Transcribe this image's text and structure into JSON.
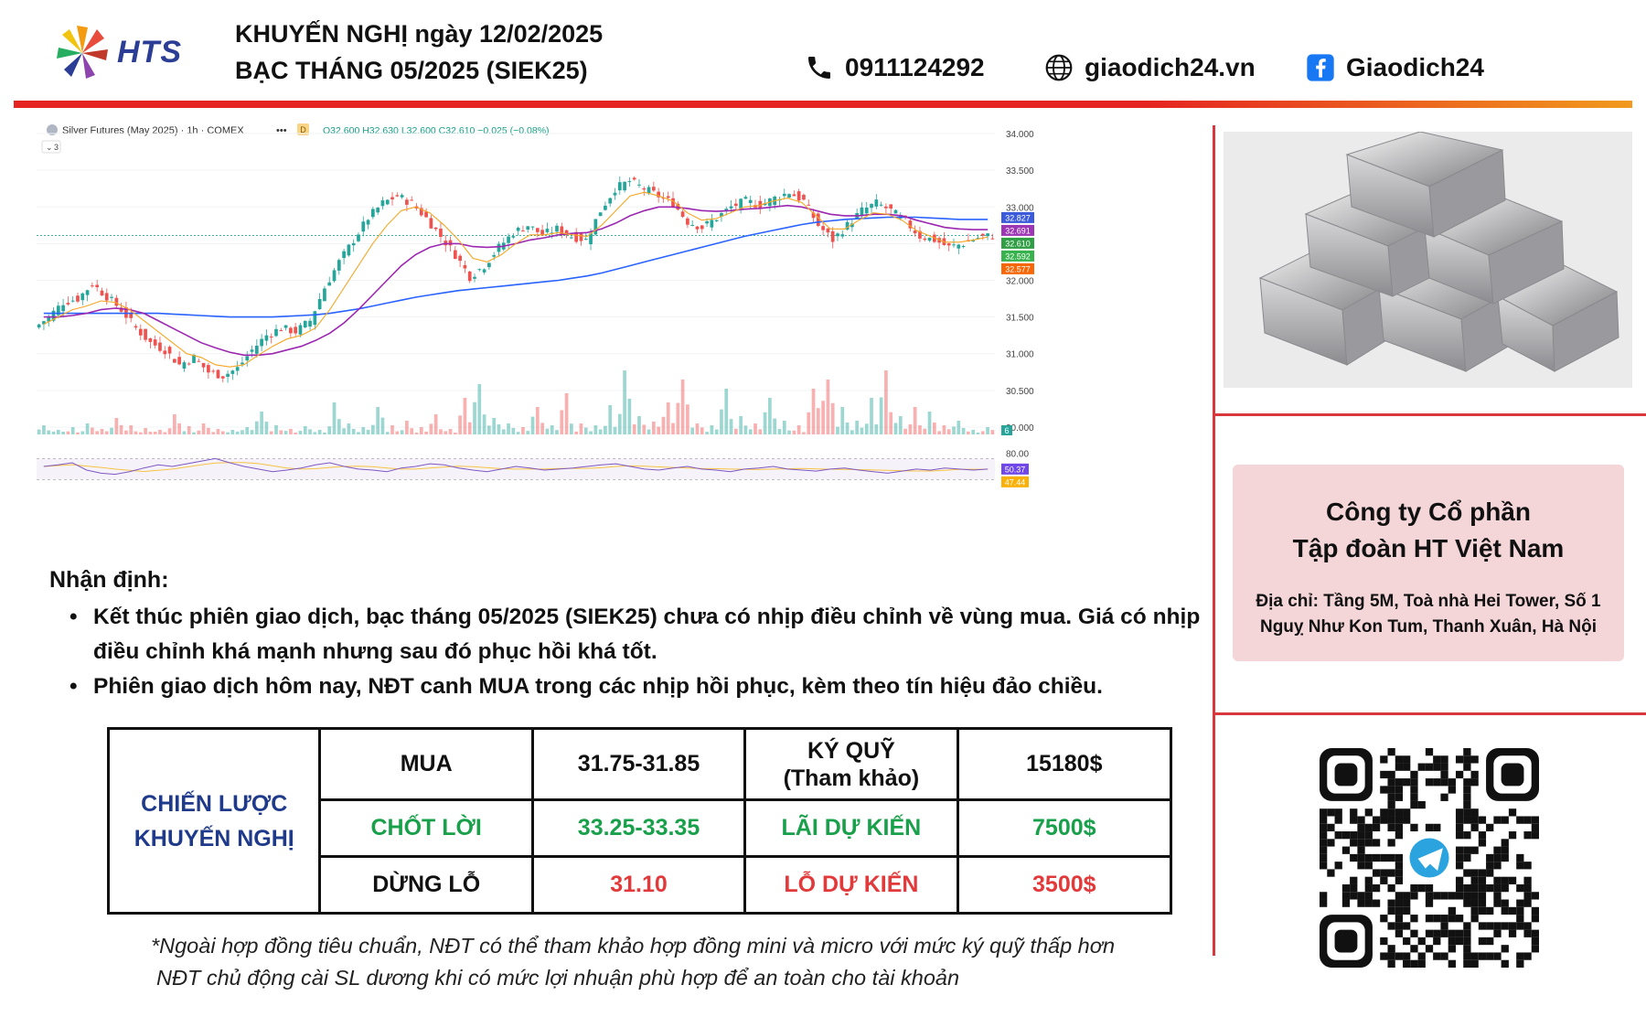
{
  "header": {
    "brand": "HTS",
    "title_line1": "KHUYẾN NGHỊ ngày 12/02/2025",
    "title_line2": "BẠC THÁNG 05/2025 (SIEK25)",
    "phone": "0911124292",
    "website": "giaodich24.vn",
    "facebook": "Giaodich24",
    "phone_icon": "phone-icon",
    "globe_icon": "globe-icon",
    "facebook_icon": "facebook-icon",
    "accent_red": "#e52421",
    "accent_orange": "#f19a1e"
  },
  "chart_data": {
    "type": "candlestick",
    "symbol_label": "Silver Futures (May 2025) · 1h · COMEX",
    "ohlc_text": "O32.600 H32.630 L32.600 C32.610 −0.025 (−0.08%)",
    "indicator_count": "3",
    "y_ticks": [
      "34.000",
      "33.500",
      "33.000",
      "32.500",
      "32.000",
      "31.500",
      "31.000",
      "30.500",
      "30.000"
    ],
    "ylim": [
      29.9,
      34.1
    ],
    "price_badges": [
      {
        "value": "32.827",
        "color": "#3b5bdb"
      },
      {
        "value": "32.691",
        "color": "#9c36b5"
      },
      {
        "value": "32.610",
        "color": "#2f9e44"
      },
      {
        "value": "32.592",
        "color": "#37b24d"
      },
      {
        "value": "32.577",
        "color": "#f76707"
      }
    ],
    "volume_badge": "6",
    "rsi_ticks": [
      "80.00"
    ],
    "rsi_badges": [
      {
        "value": "50.37",
        "color": "#7048e8"
      },
      {
        "value": "47.44",
        "color": "#fab005"
      }
    ],
    "close_path": [
      31.35,
      31.5,
      31.7,
      31.75,
      31.95,
      31.78,
      31.6,
      31.35,
      31.15,
      31.05,
      30.85,
      30.95,
      30.75,
      30.7,
      30.8,
      31.05,
      31.25,
      31.35,
      31.3,
      31.45,
      31.9,
      32.25,
      32.55,
      32.85,
      33.05,
      33.15,
      33.05,
      32.85,
      32.6,
      32.35,
      32.05,
      32.2,
      32.45,
      32.65,
      32.75,
      32.62,
      32.7,
      32.6,
      32.55,
      32.95,
      33.25,
      33.35,
      33.25,
      33.15,
      33.05,
      32.8,
      32.72,
      32.85,
      33.0,
      33.08,
      33.02,
      33.12,
      33.2,
      33.08,
      32.75,
      32.55,
      32.75,
      32.95,
      33.05,
      32.95,
      32.8,
      32.6,
      32.55,
      32.45,
      32.5,
      32.58,
      32.61
    ],
    "ma_fast": [
      31.4,
      31.5,
      31.6,
      31.65,
      31.72,
      31.7,
      31.6,
      31.45,
      31.3,
      31.15,
      31.0,
      30.95,
      30.85,
      30.82,
      30.85,
      30.98,
      31.1,
      31.2,
      31.25,
      31.35,
      31.6,
      31.9,
      32.2,
      32.5,
      32.75,
      32.95,
      33.0,
      32.92,
      32.75,
      32.55,
      32.3,
      32.25,
      32.35,
      32.5,
      32.62,
      32.62,
      32.65,
      32.62,
      32.6,
      32.75,
      32.95,
      33.15,
      33.2,
      33.15,
      33.08,
      32.92,
      32.82,
      32.84,
      32.92,
      33.0,
      33.02,
      33.08,
      33.12,
      33.06,
      32.88,
      32.7,
      32.7,
      32.82,
      32.92,
      32.9,
      32.82,
      32.68,
      32.6,
      32.52,
      32.52,
      32.55,
      32.59
    ],
    "ma_mid": [
      31.5,
      31.5,
      31.52,
      31.55,
      31.6,
      31.62,
      31.6,
      31.55,
      31.45,
      31.35,
      31.25,
      31.15,
      31.08,
      31.02,
      30.98,
      30.98,
      31.0,
      31.05,
      31.1,
      31.18,
      31.28,
      31.42,
      31.6,
      31.8,
      32.0,
      32.2,
      32.35,
      32.45,
      32.5,
      32.5,
      32.46,
      32.45,
      32.46,
      32.5,
      32.55,
      32.58,
      32.62,
      32.64,
      32.65,
      32.7,
      32.78,
      32.88,
      32.95,
      33.0,
      33.0,
      32.98,
      32.95,
      32.94,
      32.95,
      32.97,
      32.98,
      33.0,
      33.02,
      33.0,
      32.95,
      32.9,
      32.88,
      32.88,
      32.9,
      32.9,
      32.88,
      32.82,
      32.77,
      32.72,
      32.7,
      32.69,
      32.69
    ],
    "ma_slow": [
      31.55,
      31.55,
      31.55,
      31.55,
      31.55,
      31.55,
      31.55,
      31.55,
      31.55,
      31.54,
      31.53,
      31.52,
      31.51,
      31.5,
      31.5,
      31.5,
      31.5,
      31.51,
      31.52,
      31.53,
      31.55,
      31.58,
      31.61,
      31.65,
      31.69,
      31.73,
      31.77,
      31.8,
      31.83,
      31.86,
      31.88,
      31.9,
      31.92,
      31.94,
      31.96,
      31.98,
      32.0,
      32.03,
      32.06,
      32.1,
      32.15,
      32.2,
      32.25,
      32.3,
      32.35,
      32.4,
      32.45,
      32.5,
      32.55,
      32.6,
      32.64,
      32.68,
      32.72,
      32.76,
      32.79,
      32.81,
      32.83,
      32.84,
      32.85,
      32.86,
      32.86,
      32.86,
      32.85,
      32.84,
      32.83,
      32.83,
      32.83
    ],
    "volume_rel": [
      0.1,
      0.05,
      0.08,
      0.12,
      0.06,
      0.18,
      0.1,
      0.07,
      0.05,
      0.22,
      0.09,
      0.12,
      0.06,
      0.05,
      0.08,
      0.25,
      0.1,
      0.06,
      0.09,
      0.05,
      0.35,
      0.12,
      0.08,
      0.3,
      0.1,
      0.15,
      0.08,
      0.22,
      0.06,
      0.4,
      0.55,
      0.18,
      0.12,
      0.08,
      0.3,
      0.1,
      0.45,
      0.12,
      0.1,
      0.32,
      0.7,
      0.2,
      0.14,
      0.35,
      0.6,
      0.12,
      0.1,
      0.5,
      0.2,
      0.12,
      0.4,
      0.15,
      0.1,
      0.5,
      0.6,
      0.3,
      0.15,
      0.4,
      0.7,
      0.2,
      0.3,
      0.25,
      0.1,
      0.15,
      0.05,
      0.08,
      0.12
    ],
    "rsi": [
      55,
      58,
      62,
      48,
      42,
      40,
      45,
      52,
      58,
      55,
      60,
      65,
      70,
      62,
      55,
      50,
      45,
      48,
      52,
      58,
      62,
      55,
      50,
      48,
      45,
      52,
      55,
      60,
      58,
      52,
      48,
      45,
      50,
      55,
      52,
      48,
      50,
      52,
      55,
      58,
      60,
      55,
      50,
      48,
      52,
      55,
      50,
      48,
      45,
      50,
      52,
      55,
      50,
      48,
      46,
      50,
      52,
      48,
      45,
      42,
      46,
      50,
      48,
      52,
      50,
      48,
      50
    ],
    "colors": {
      "up": "#26a69a",
      "down": "#ef5350",
      "ma_fast": "#f5a623",
      "ma_mid": "#9c27b0",
      "ma_slow": "#2962ff",
      "rsi_line": "#7e57c2",
      "rsi_signal": "#f6c344"
    }
  },
  "analysis": {
    "title": "Nhận định:",
    "bullets": [
      "Kết thúc phiên giao dịch, bạc tháng 05/2025 (SIEK25) chưa có nhịp điều chỉnh về vùng mua. Giá có nhịp điều chỉnh khá mạnh nhưng sau đó phục hồi khá tốt.",
      "Phiên giao dịch hôm nay, NĐT canh MUA trong các nhịp hồi phục, kèm theo tín hiệu đảo chiều."
    ]
  },
  "strategy": {
    "label_line1": "CHIẾN LƯỢC",
    "label_line2": "KHUYẾN NGHỊ",
    "buy_label": "MUA",
    "buy_value": "31.75-31.85",
    "margin_label_line1": "KÝ QUỸ",
    "margin_label_line2": "(Tham khảo)",
    "margin_value": "15180$",
    "tp_label": "CHỐT LỜI",
    "tp_value": "33.25-33.35",
    "profit_label": "LÃI DỰ KIẾN",
    "profit_value": "7500$",
    "sl_label": "DỪNG LỖ",
    "sl_value": "31.10",
    "loss_label": "LỖ DỰ KIẾN",
    "loss_value": "3500$"
  },
  "notes": {
    "line1": "*Ngoài hợp đồng tiêu chuẩn, NĐT có thể tham khảo hợp đồng mini và micro với mức ký quỹ thấp hơn",
    "line2": "NĐT chủ động cài SL dương khi có mức lợi nhuận phù hợp để an toàn cho tài khoản"
  },
  "sidebar": {
    "image_icon": "silver-bars-icon",
    "company_line1": "Công ty Cổ phần",
    "company_line2": "Tập đoàn HT Việt Nam",
    "address_line1": "Địa chỉ: Tầng 5M, Toà nhà Hei Tower, Số 1",
    "address_line2": "Nguỵ Như Kon Tum, Thanh Xuân, Hà Nội",
    "qr_icon": "telegram-qr-icon"
  }
}
